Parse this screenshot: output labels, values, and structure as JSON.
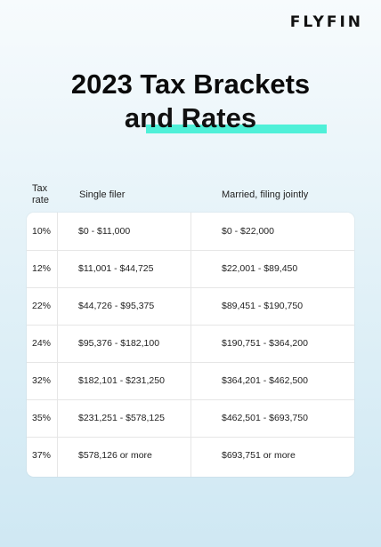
{
  "brand": {
    "logo": "FLYFIN"
  },
  "title": {
    "line1": "2023 Tax Brackets",
    "line2": "and Rates"
  },
  "table": {
    "headers": {
      "rate": "Tax rate",
      "single": "Single filer",
      "married": "Married, filing jointly"
    },
    "rows": [
      {
        "rate": "10%",
        "single": "$0 - $11,000",
        "married": "$0 - $22,000"
      },
      {
        "rate": "12%",
        "single": "$11,001 - $44,725",
        "married": "$22,001 - $89,450"
      },
      {
        "rate": "22%",
        "single": "$44,726 - $95,375",
        "married": "$89,451 - $190,750"
      },
      {
        "rate": "24%",
        "single": "$95,376 - $182,100",
        "married": "$190,751 - $364,200"
      },
      {
        "rate": "32%",
        "single": "$182,101 - $231,250",
        "married": "$364,201 - $462,500"
      },
      {
        "rate": "35%",
        "single": "$231,251 - $578,125",
        "married": "$462,501 - $693,750"
      },
      {
        "rate": "37%",
        "single": "$578,126 or more",
        "married": "$693,751 or more"
      }
    ]
  },
  "colors": {
    "highlight": "#4ff0d8",
    "card": "#ffffff"
  }
}
